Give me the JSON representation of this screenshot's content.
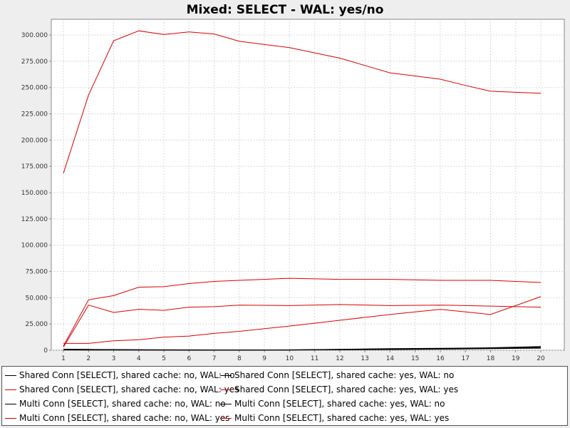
{
  "chart_data": {
    "type": "line",
    "title": "Mixed: SELECT - WAL: yes/no",
    "xlabel": "",
    "ylabel": "",
    "x": [
      1,
      2,
      3,
      4,
      5,
      6,
      7,
      8,
      9,
      10,
      11,
      12,
      13,
      14,
      15,
      16,
      17,
      18,
      19,
      20
    ],
    "x_ticks": [
      "1",
      "2",
      "3",
      "4",
      "5",
      "6",
      "7",
      "8",
      "9",
      "10",
      "11",
      "12",
      "13",
      "14",
      "15",
      "16",
      "17",
      "18",
      "19",
      "20"
    ],
    "ylim": [
      0,
      315000
    ],
    "y_ticks": [
      0,
      25000,
      50000,
      75000,
      100000,
      125000,
      150000,
      175000,
      200000,
      225000,
      250000,
      275000,
      300000
    ],
    "y_tick_labels": [
      "0",
      "25.000",
      "50.000",
      "75.000",
      "100.000",
      "125.000",
      "150.000",
      "175.000",
      "200.000",
      "225.000",
      "250.000",
      "275.000",
      "300.000"
    ],
    "grid": true,
    "legend_position": "bottom",
    "series": [
      {
        "name": "Shared Conn [SELECT], shared cache: no, WAL: no",
        "color": "#000000",
        "x": [
          1,
          2,
          4,
          6,
          8,
          10,
          12,
          14,
          16,
          18,
          20
        ],
        "values": [
          1000,
          800,
          500,
          400,
          300,
          300,
          800,
          1200,
          1500,
          2000,
          2800
        ]
      },
      {
        "name": "Shared Conn [SELECT], shared cache: yes, WAL: no",
        "color": "#000000",
        "x": [
          1,
          2,
          4,
          6,
          8,
          10,
          12,
          14,
          16,
          18,
          20
        ],
        "values": [
          900,
          700,
          400,
          300,
          300,
          400,
          900,
          1500,
          1800,
          2400,
          3500
        ]
      },
      {
        "name": "Shared Conn [SELECT], shared cache: no, WAL: yes",
        "color": "#dd0000",
        "x": [
          1,
          2,
          3,
          4,
          5,
          6,
          7,
          8,
          9,
          10,
          11,
          12,
          13,
          14,
          15,
          16,
          17,
          18,
          19,
          20
        ],
        "values": [
          168500,
          243000,
          294500,
          304000,
          300500,
          303000,
          301000,
          294000,
          291000,
          288000,
          283000,
          278000,
          271000,
          264000,
          261000,
          258000,
          252000,
          246500,
          245500,
          244500
        ]
      },
      {
        "name": "Shared Conn [SELECT], shared cache: yes, WAL: yes",
        "color": "#dd0000",
        "x": [
          1,
          2,
          3,
          4,
          5,
          6,
          7,
          8,
          10,
          12,
          14,
          16,
          18,
          20
        ],
        "values": [
          4000,
          48000,
          52000,
          60000,
          60500,
          63500,
          65500,
          66500,
          68500,
          67500,
          67500,
          66500,
          66500,
          64500
        ]
      },
      {
        "name": "Multi Conn [SELECT], shared cache: no, WAL: no",
        "color": "#000000",
        "x": [
          1,
          2,
          4,
          6,
          8,
          10,
          12,
          14,
          16,
          18,
          20
        ],
        "values": [
          500,
          400,
          300,
          200,
          200,
          300,
          600,
          900,
          1200,
          1800,
          2200
        ]
      },
      {
        "name": "Multi Conn [SELECT], shared cache: yes, WAL: no",
        "color": "#000000",
        "x": [
          1,
          2,
          4,
          6,
          8,
          10,
          12,
          14,
          16,
          18,
          20
        ],
        "values": [
          300,
          200,
          200,
          100,
          100,
          200,
          400,
          700,
          1000,
          1500,
          2000
        ]
      },
      {
        "name": "Multi Conn [SELECT], shared cache: no, WAL: yes",
        "color": "#dd0000",
        "x": [
          1,
          2,
          3,
          4,
          5,
          6,
          7,
          8,
          10,
          12,
          14,
          16,
          18,
          20
        ],
        "values": [
          3000,
          43000,
          36000,
          39000,
          38000,
          41000,
          41500,
          43000,
          42500,
          43500,
          42500,
          43000,
          42000,
          41000
        ]
      },
      {
        "name": "Multi Conn [SELECT], shared cache: yes, WAL: yes",
        "color": "#dd0000",
        "x": [
          1,
          2,
          3,
          4,
          5,
          6,
          7,
          8,
          10,
          12,
          14,
          16,
          18,
          20
        ],
        "values": [
          6500,
          6500,
          9000,
          10000,
          12500,
          13500,
          16000,
          18000,
          23000,
          28500,
          34000,
          39000,
          34000,
          51000
        ]
      }
    ]
  }
}
